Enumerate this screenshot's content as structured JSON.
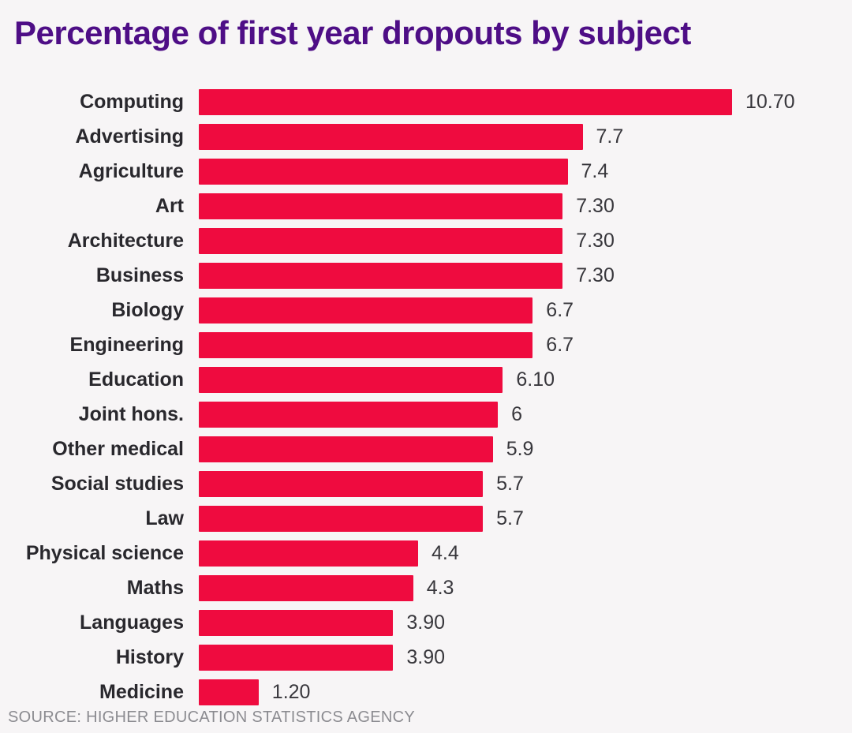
{
  "page": {
    "title": "Percentage of first year dropouts by subject",
    "source": "SOURCE: HIGHER EDUCATION STATISTICS AGENCY"
  },
  "colors": {
    "background": "#F7F5F6",
    "bar": "#EF0B3F",
    "title": "#4E0E86",
    "label": "#29282D",
    "value": "#38373C",
    "source": "#8B8B90"
  },
  "chart_data": {
    "type": "bar",
    "orientation": "horizontal",
    "title": "Percentage of first year dropouts by subject",
    "categories": [
      "Computing",
      "Advertising",
      "Agriculture",
      "Art",
      "Architecture",
      "Business",
      "Biology",
      "Engineering",
      "Education",
      "Joint hons.",
      "Other medical",
      "Social studies",
      "Law",
      "Physical science",
      "Maths",
      "Languages",
      "History",
      "Medicine"
    ],
    "values": [
      10.7,
      7.7,
      7.4,
      7.3,
      7.3,
      7.3,
      6.7,
      6.7,
      6.1,
      6,
      5.9,
      5.7,
      5.7,
      4.4,
      4.3,
      3.9,
      3.9,
      1.2
    ],
    "value_labels": [
      "10.70",
      "7.7",
      "7.4",
      "7.30",
      "7.30",
      "7.30",
      "6.7",
      "6.7",
      "6.10",
      "6",
      "5.9",
      "5.7",
      "5.7",
      "4.4",
      "4.3",
      "3.90",
      "3.90",
      "1.20"
    ],
    "xlim": [
      0,
      10.7
    ],
    "xlabel": "",
    "ylabel": "",
    "grid": false,
    "legend": false,
    "source": "SOURCE: HIGHER EDUCATION STATISTICS AGENCY"
  }
}
